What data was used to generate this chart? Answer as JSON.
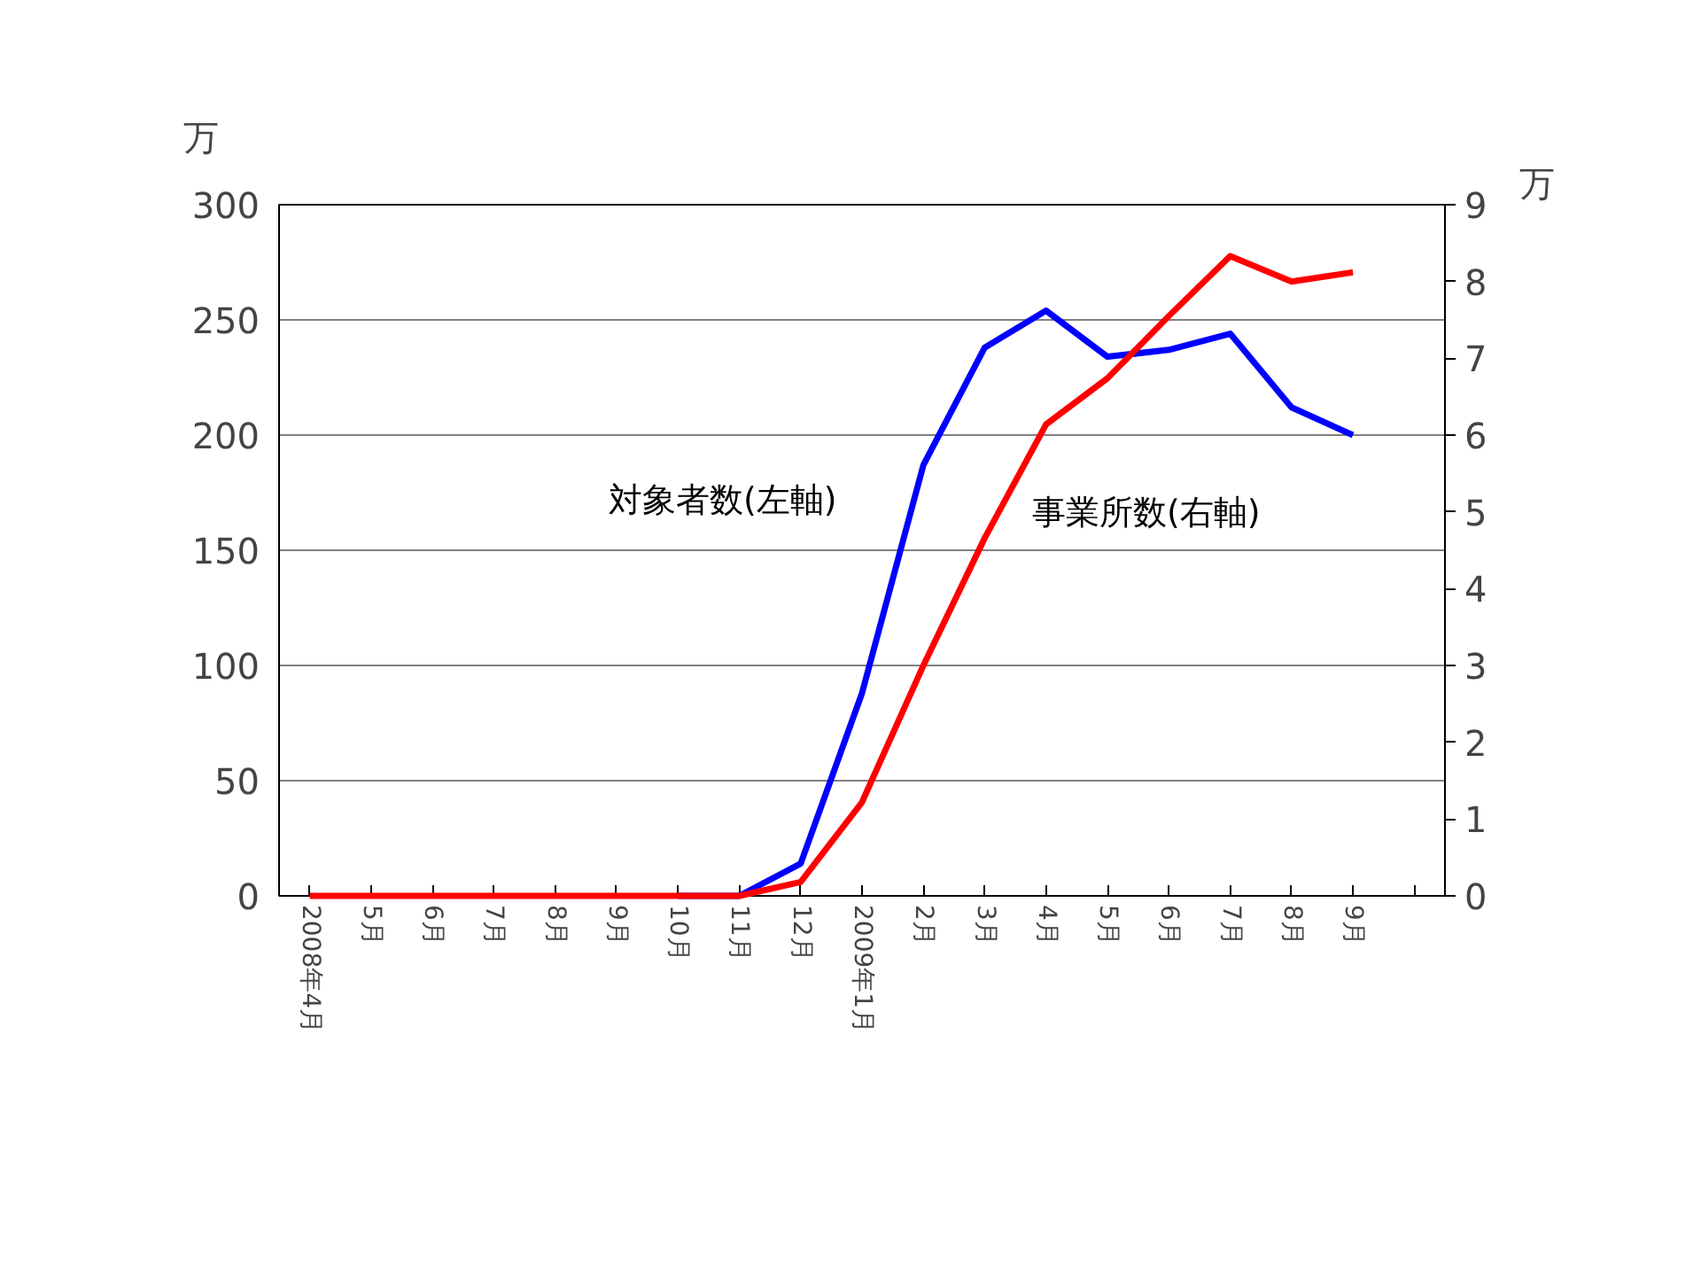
{
  "chart_data": {
    "type": "line",
    "ylabel": "万",
    "y2label": "万",
    "categories": [
      "2008年4月",
      "5月",
      "6月",
      "7月",
      "8月",
      "9月",
      "10月",
      "11月",
      "12月",
      "2009年1月",
      "2月",
      "3月",
      "4月",
      "5月",
      "6月",
      "7月",
      "8月",
      "9月",
      null
    ],
    "series": [
      {
        "name": "対象者数(左軸)",
        "color": "#0000ff",
        "values": [
          null,
          null,
          null,
          null,
          null,
          null,
          0,
          0,
          14,
          88,
          187,
          238,
          254,
          234,
          237,
          244,
          212,
          200,
          null
        ]
      },
      {
        "name": "事業所数(右軸)",
        "color": "#ff0000",
        "axis": "y2",
        "values": [
          0,
          0,
          0,
          0,
          0,
          0,
          0,
          0,
          0.18,
          1.22,
          3.0,
          4.66,
          6.14,
          6.74,
          7.55,
          8.33,
          8.0,
          8.12,
          null
        ]
      }
    ],
    "ylim": [
      0,
      300
    ],
    "yticks": [
      0,
      50,
      100,
      150,
      200,
      250,
      300
    ],
    "y2lim": [
      0,
      9
    ],
    "y2ticks": [
      0,
      1,
      2,
      3,
      4,
      5,
      6,
      7,
      8,
      9
    ],
    "grid": "y",
    "marker": "none",
    "line_style": "solid"
  }
}
